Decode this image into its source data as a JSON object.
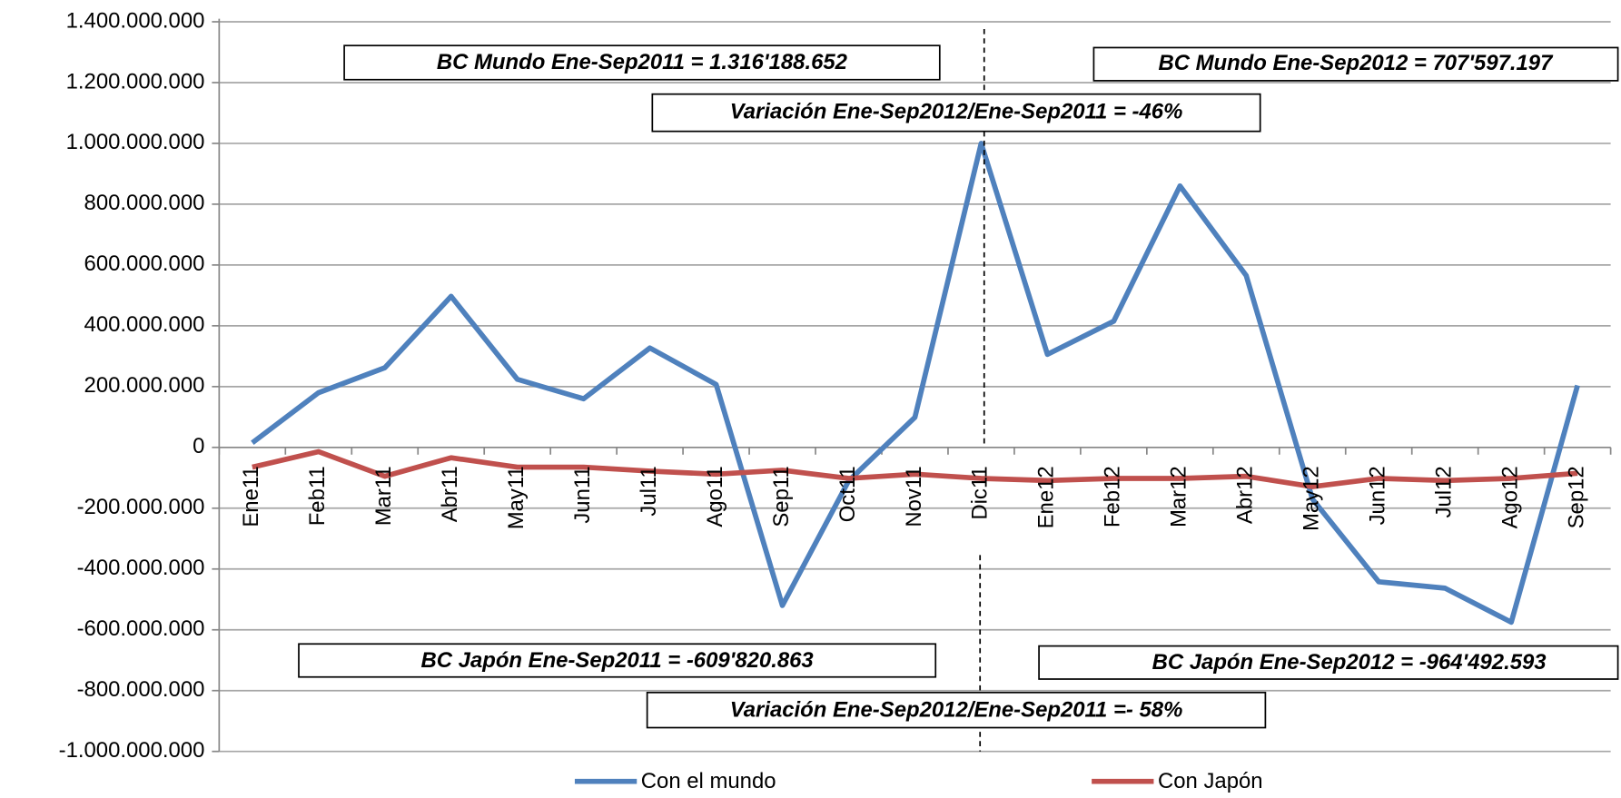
{
  "chart_data": {
    "type": "line",
    "categories": [
      "Ene11",
      "Feb11",
      "Mar11",
      "Abr11",
      "May11",
      "Jun11",
      "Jul11",
      "Ago11",
      "Sep11",
      "Oct11",
      "Nov11",
      "Dic11",
      "Ene12",
      "Feb12",
      "Mar12",
      "Abr12",
      "May12",
      "Jun12",
      "Jul12",
      "Ago12",
      "Sep12"
    ],
    "series": [
      {
        "name": "Con el mundo",
        "color": "#4f81bd",
        "values": [
          15000000,
          180000000,
          262000000,
          497000000,
          224000000,
          160000000,
          327000000,
          207000000,
          -520000000,
          -110000000,
          99000000,
          1000000000,
          306000000,
          415000000,
          860000000,
          565000000,
          -170000000,
          -442000000,
          -463000000,
          -575000000,
          204000000
        ]
      },
      {
        "name": "Con Japón",
        "color": "#c0504d",
        "values": [
          -65000000,
          -14000000,
          -95000000,
          -34000000,
          -65000000,
          -65000000,
          -78000000,
          -88000000,
          -75000000,
          -102000000,
          -88000000,
          -102000000,
          -109000000,
          -102000000,
          -102000000,
          -95000000,
          -129000000,
          -102000000,
          -109000000,
          -102000000,
          -85000000
        ]
      }
    ],
    "ylim": [
      -1000000000,
      1400000000
    ],
    "yticks": [
      {
        "value": -1000000000,
        "label": "-1.000.000.000"
      },
      {
        "value": -800000000,
        "label": "-800.000.000"
      },
      {
        "value": -600000000,
        "label": "-600.000.000"
      },
      {
        "value": -400000000,
        "label": "-400.000.000"
      },
      {
        "value": -200000000,
        "label": "-200.000.000"
      },
      0,
      {
        "value": 200000000,
        "label": "200.000.000"
      },
      {
        "value": 400000000,
        "label": "400.000.000"
      },
      {
        "value": 600000000,
        "label": "600.000.000"
      },
      {
        "value": 800000000,
        "label": "800.000.000"
      },
      {
        "value": 1000000000,
        "label": "1.000.000.000"
      },
      {
        "value": 1200000000,
        "label": "1.200.000.000"
      },
      {
        "value": 1400000000,
        "label": "1.400.000.000"
      }
    ],
    "grid": true,
    "legend": "bottom",
    "annotations": [
      "BC Mundo  Ene-Sep2011 = 1.316'188.652",
      "BC Mundo  Ene-Sep2012 = 707'597.197",
      "Variación Ene-Sep2012/Ene-Sep2011  = -46%",
      "BC Japón  Ene-Sep2011  = -609'820.863",
      "BC Japón  Ene-Sep2012 = -964'492.593",
      "Variación Ene-Sep2012/Ene-Sep2011 =- 58%"
    ]
  }
}
